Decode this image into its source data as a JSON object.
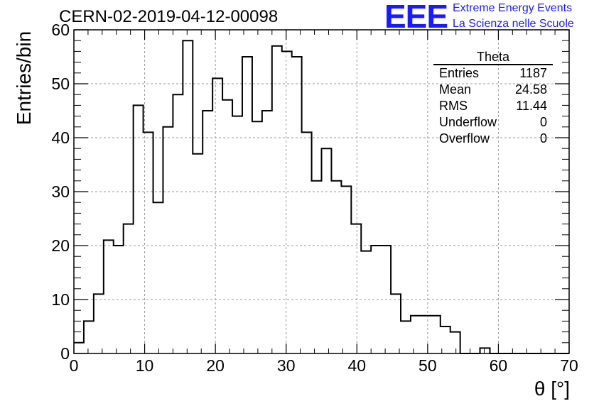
{
  "title": "CERN-02-2019-04-12-00098",
  "logo": {
    "text": "EEE",
    "line1": "Extreme Energy Events",
    "line2": "La Scienza nelle Scuole",
    "color": "#1a1aff"
  },
  "stats": {
    "title": "Theta",
    "rows": [
      {
        "label": "Entries",
        "value": "1187"
      },
      {
        "label": "Mean",
        "value": "24.58"
      },
      {
        "label": "RMS",
        "value": "11.44"
      },
      {
        "label": "Underflow",
        "value": "0"
      },
      {
        "label": "Overflow",
        "value": "0"
      }
    ]
  },
  "chart_data": {
    "type": "bar",
    "title": "CERN-02-2019-04-12-00098",
    "xlabel": "θ [°]",
    "ylabel": "Entries/bin",
    "xlim": [
      0,
      70
    ],
    "ylim": [
      0,
      60
    ],
    "bin_width": 1.4,
    "x_ticks": [
      0,
      10,
      20,
      30,
      40,
      50,
      60,
      70
    ],
    "y_ticks": [
      0,
      10,
      20,
      30,
      40,
      50,
      60
    ],
    "grid": true,
    "values": [
      2,
      6,
      11,
      21,
      20,
      24,
      46,
      41,
      28,
      42,
      48,
      58,
      37,
      45,
      51,
      47,
      44,
      55,
      43,
      45,
      57,
      56,
      55,
      41,
      32,
      38,
      32,
      31,
      24,
      19,
      20,
      20,
      11,
      6,
      7,
      7,
      7,
      5,
      4,
      0,
      0,
      1,
      0,
      0,
      0,
      0,
      0,
      0,
      0,
      0
    ]
  }
}
